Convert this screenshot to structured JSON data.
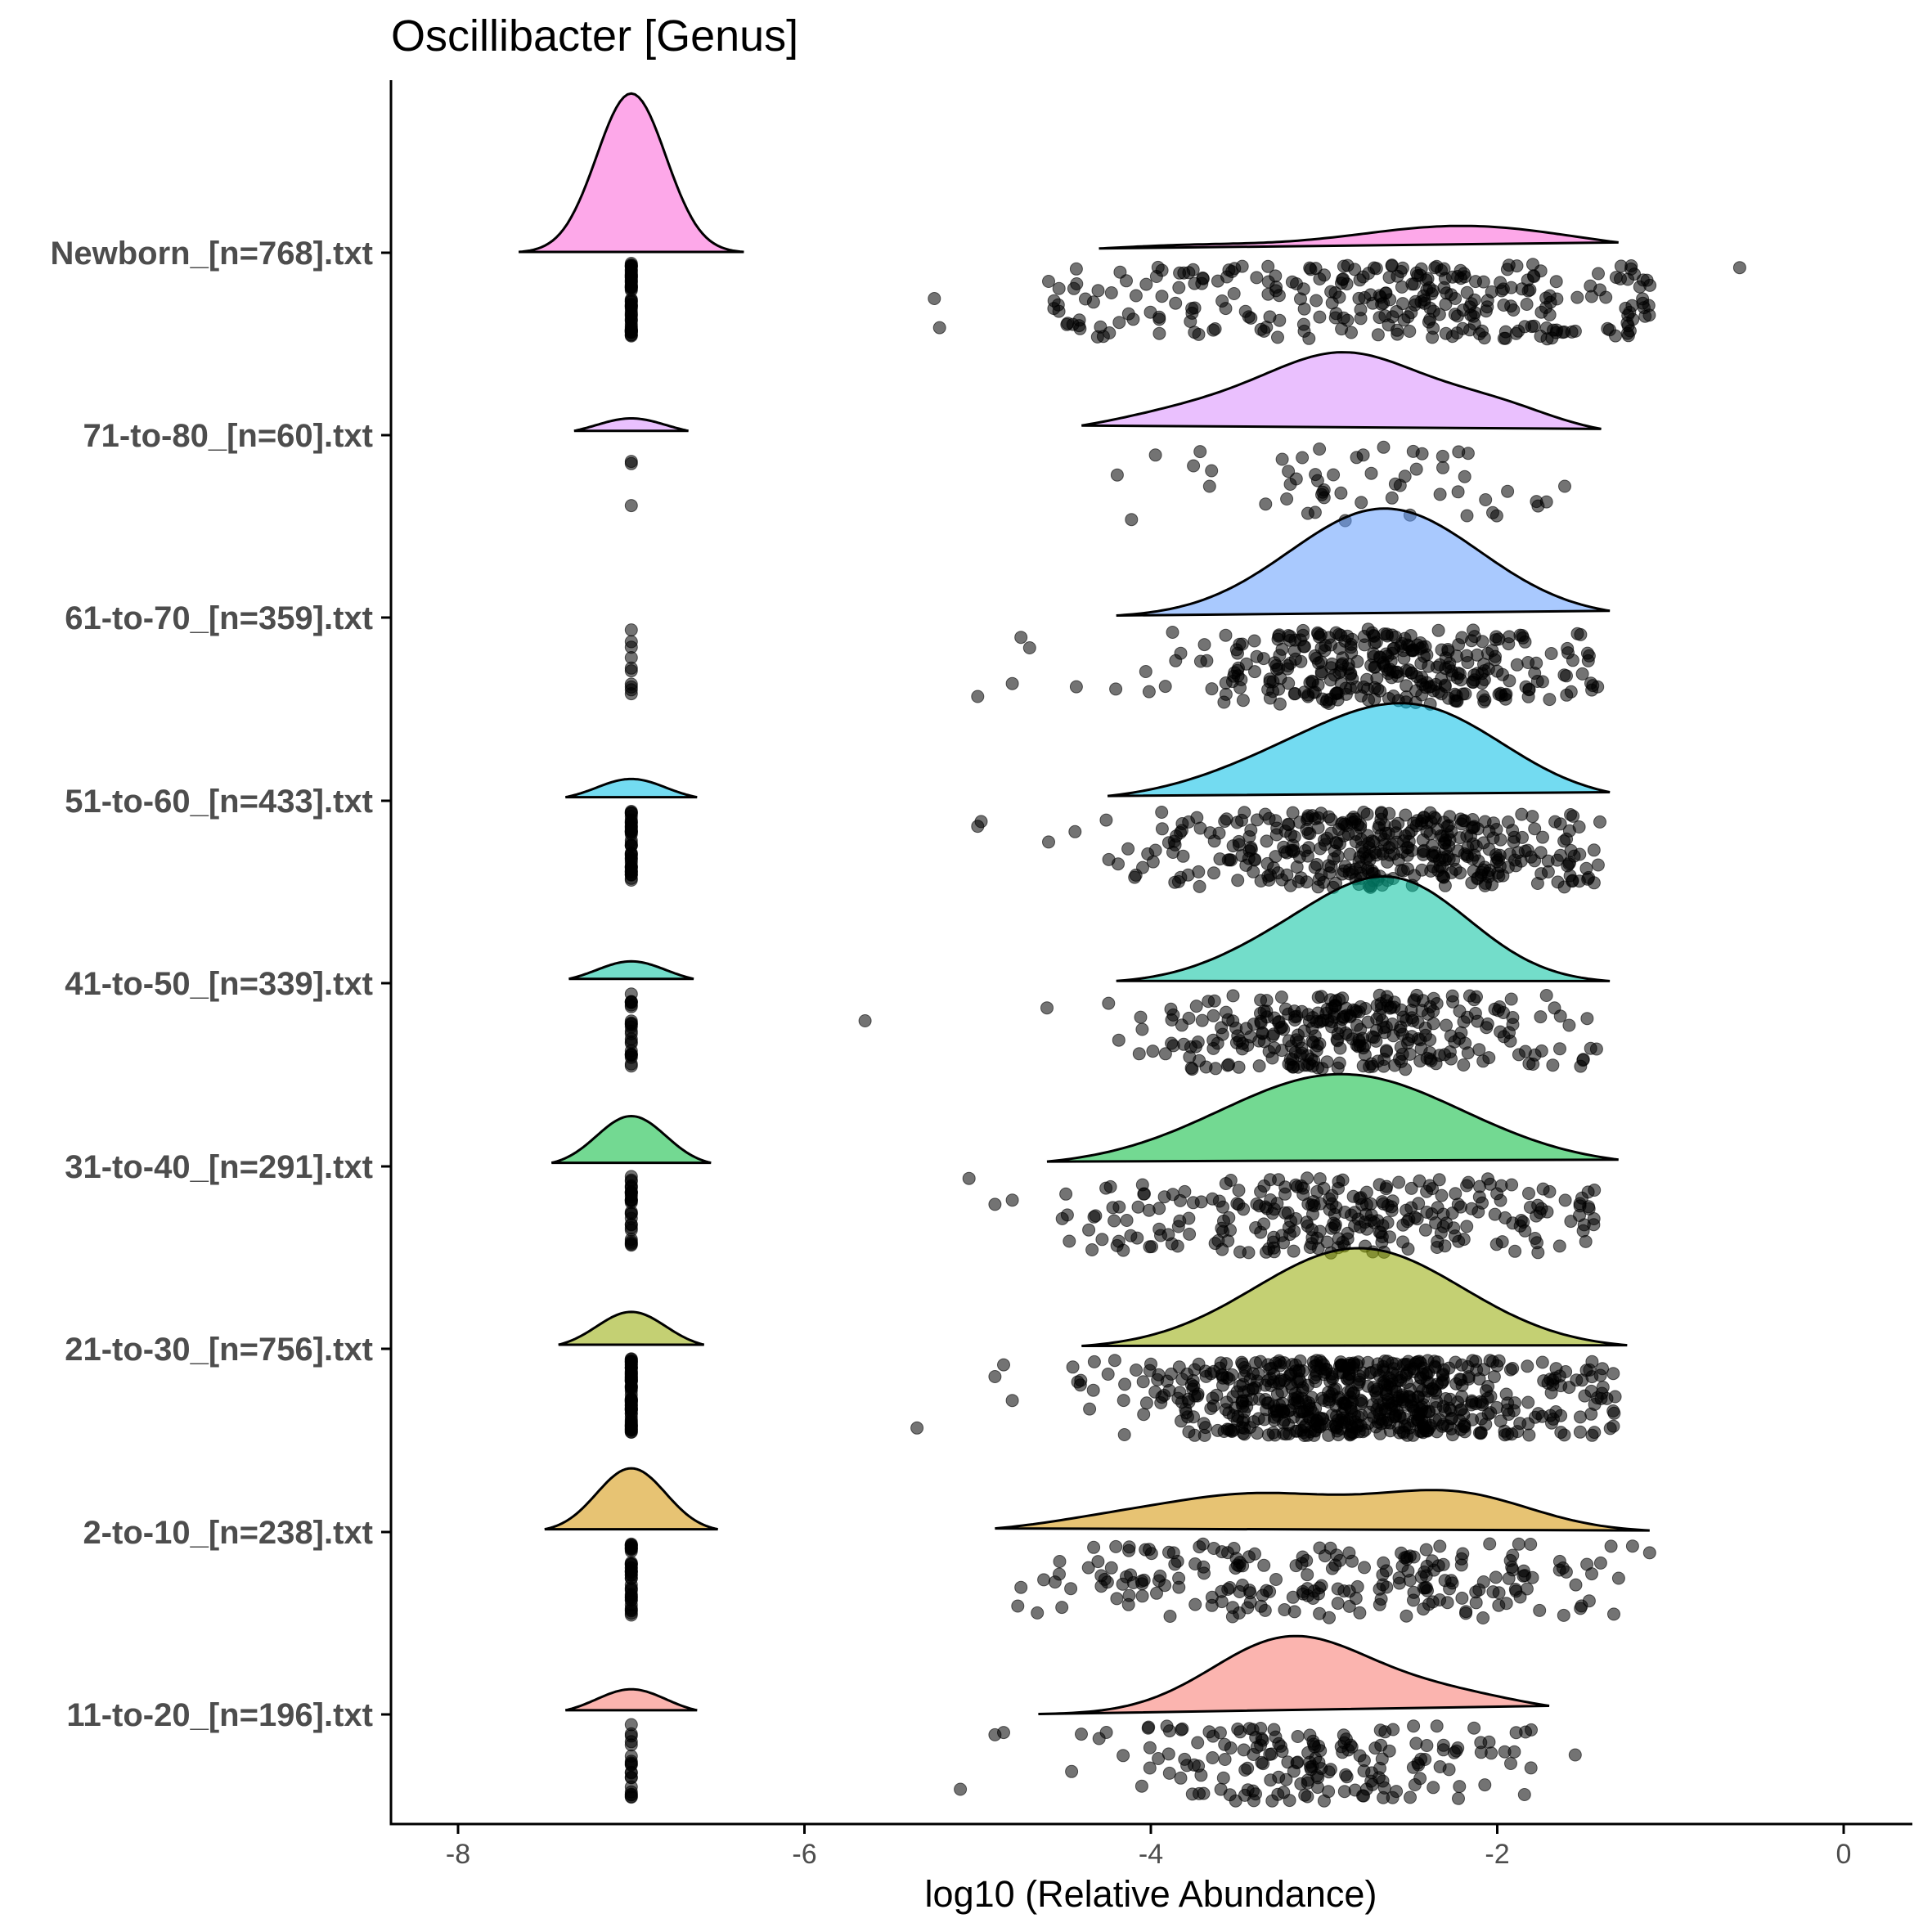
{
  "chart_data": {
    "type": "raincloud",
    "title": "Oscillibacter [Genus]",
    "xlabel": "log10 (Relative Abundance)",
    "ylabel": "",
    "xlim": [
      -8.4,
      0.4
    ],
    "x_ticks": [
      -8,
      -6,
      -4,
      -2,
      0
    ],
    "x_tick_labels": [
      "-8",
      "-6",
      "-4",
      "-2",
      "0"
    ],
    "groups": [
      {
        "label": "Newborn_[n=768].txt",
        "color": "#fb61d7",
        "zero_peak": {
          "center": -7.0,
          "sd": 0.2,
          "height": 0.95,
          "range": [
            -7.65,
            -6.35
          ]
        },
        "cloud": {
          "range": [
            -4.3,
            -1.3
          ],
          "components": [
            {
              "mu": -2.2,
              "sd": 0.65,
              "w": 0.16
            },
            {
              "mu": -3.8,
              "sd": 0.5,
              "w": 0.04
            }
          ]
        },
        "points": {
          "zero": 60,
          "cloud_n": 300,
          "cloud_range": [
            -4.6,
            -1.1
          ],
          "outliers": [
            -5.25,
            -5.22,
            -0.6
          ]
        }
      },
      {
        "label": "71-to-80_[n=60].txt",
        "color": "#d98cfe",
        "zero_peak": {
          "center": -7.0,
          "sd": 0.2,
          "height": 0.1,
          "range": [
            -7.33,
            -6.67
          ]
        },
        "cloud": {
          "range": [
            -4.4,
            -1.4
          ],
          "components": [
            {
              "mu": -2.85,
              "sd": 0.45,
              "w": 0.45
            },
            {
              "mu": -2.0,
              "sd": 0.35,
              "w": 0.15
            },
            {
              "mu": -3.7,
              "sd": 0.5,
              "w": 0.15
            }
          ]
        },
        "points": {
          "zero": 3,
          "cloud_n": 55,
          "cloud_range": [
            -4.4,
            -1.6
          ],
          "outliers": []
        }
      },
      {
        "label": "61-to-70_[n=359].txt",
        "color": "#629dfe",
        "zero_peak": {
          "center": -7.0,
          "sd": 0.2,
          "height": 0.0,
          "range": [
            -7.0,
            -7.0
          ]
        },
        "cloud": {
          "range": [
            -4.2,
            -1.35
          ],
          "components": [
            {
              "mu": -2.65,
              "sd": 0.55,
              "w": 0.65
            }
          ]
        },
        "points": {
          "zero": 10,
          "cloud_n": 330,
          "cloud_range": [
            -4.5,
            -1.4
          ],
          "outliers": [
            -5.0,
            -4.8,
            -4.75,
            -4.7
          ]
        }
      },
      {
        "label": "51-to-60_[n=433].txt",
        "color": "#00bde5",
        "zero_peak": {
          "center": -7.0,
          "sd": 0.2,
          "height": 0.13,
          "range": [
            -7.38,
            -6.62
          ]
        },
        "cloud": {
          "range": [
            -4.25,
            -1.35
          ],
          "components": [
            {
              "mu": -2.4,
              "sd": 0.5,
              "w": 0.45
            },
            {
              "mu": -3.1,
              "sd": 0.55,
              "w": 0.25
            }
          ]
        },
        "points": {
          "zero": 45,
          "cloud_n": 400,
          "cloud_range": [
            -4.6,
            -1.4
          ],
          "outliers": [
            -5.0,
            -4.98
          ]
        }
      },
      {
        "label": "41-to-50_[n=339].txt",
        "color": "#00c19f",
        "zero_peak": {
          "center": -7.0,
          "sd": 0.2,
          "height": 0.13,
          "range": [
            -7.36,
            -6.64
          ]
        },
        "cloud": {
          "range": [
            -4.2,
            -1.35
          ],
          "components": [
            {
              "mu": -2.6,
              "sd": 0.45,
              "w": 0.6
            },
            {
              "mu": -3.3,
              "sd": 0.4,
              "w": 0.15
            }
          ]
        },
        "points": {
          "zero": 25,
          "cloud_n": 310,
          "cloud_range": [
            -4.5,
            -1.4
          ],
          "outliers": [
            -5.65,
            -4.6
          ]
        }
      },
      {
        "label": "31-to-40_[n=291].txt",
        "color": "#00ba38",
        "zero_peak": {
          "center": -7.0,
          "sd": 0.2,
          "height": 0.3,
          "range": [
            -7.46,
            -6.54
          ]
        },
        "cloud": {
          "range": [
            -4.6,
            -1.3
          ],
          "components": [
            {
              "mu": -2.9,
              "sd": 0.7,
              "w": 0.55
            }
          ]
        },
        "points": {
          "zero": 30,
          "cloud_n": 270,
          "cloud_range": [
            -4.6,
            -1.4
          ],
          "outliers": [
            -5.05,
            -4.9,
            -4.8
          ]
        }
      },
      {
        "label": "21-to-30_[n=756].txt",
        "color": "#93aa00",
        "zero_peak": {
          "center": -7.0,
          "sd": 0.2,
          "height": 0.22,
          "range": [
            -7.42,
            -6.58
          ]
        },
        "cloud": {
          "range": [
            -4.4,
            -1.25
          ],
          "components": [
            {
              "mu": -2.8,
              "sd": 0.6,
              "w": 0.6
            }
          ]
        },
        "points": {
          "zero": 70,
          "cloud_n": 660,
          "cloud_range": [
            -4.5,
            -1.3
          ],
          "outliers": [
            -5.35,
            -4.9,
            -4.85,
            -4.8
          ]
        }
      },
      {
        "label": "2-to-10_[n=238].txt",
        "color": "#d39200",
        "zero_peak": {
          "center": -7.0,
          "sd": 0.2,
          "height": 0.38,
          "range": [
            -7.5,
            -6.5
          ]
        },
        "cloud": {
          "range": [
            -4.9,
            -1.12
          ],
          "components": [
            {
              "mu": -2.25,
              "sd": 0.45,
              "w": 0.22
            },
            {
              "mu": -3.4,
              "sd": 0.55,
              "w": 0.22
            },
            {
              "mu": -4.3,
              "sd": 0.4,
              "w": 0.05
            }
          ]
        },
        "points": {
          "zero": 40,
          "cloud_n": 215,
          "cloud_range": [
            -4.9,
            -1.2
          ],
          "outliers": [
            -1.12,
            -4.75
          ]
        }
      },
      {
        "label": "11-to-20_[n=196].txt",
        "color": "#f8766d",
        "zero_peak": {
          "center": -7.0,
          "sd": 0.2,
          "height": 0.15,
          "range": [
            -7.38,
            -6.62
          ]
        },
        "cloud": {
          "range": [
            -4.65,
            -1.7
          ],
          "components": [
            {
              "mu": -3.2,
              "sd": 0.45,
              "w": 0.45
            },
            {
              "mu": -2.3,
              "sd": 0.45,
              "w": 0.12
            }
          ]
        },
        "points": {
          "zero": 20,
          "cloud_n": 175,
          "cloud_range": [
            -4.5,
            -1.8
          ],
          "outliers": [
            -5.1,
            -4.9,
            -4.85,
            -1.55
          ]
        }
      }
    ]
  }
}
